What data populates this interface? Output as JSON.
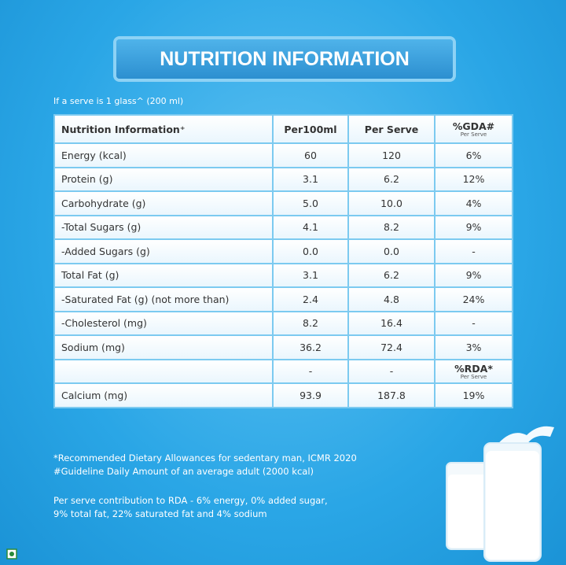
{
  "header": {
    "title": "NUTRITION INFORMATION",
    "serve_note": "If a serve is 1 glass^ (200 ml)"
  },
  "table": {
    "columns": [
      {
        "label": "Nutrition Information⁺"
      },
      {
        "label": "Per100ml"
      },
      {
        "label": "Per Serve"
      },
      {
        "label": "%GDA#",
        "sub": "Per Serve"
      }
    ],
    "rows": [
      {
        "label": "Energy (kcal)",
        "per100": "60",
        "per_serve": "120",
        "pct": "6%"
      },
      {
        "label": "Protein (g)",
        "per100": "3.1",
        "per_serve": "6.2",
        "pct": "12%"
      },
      {
        "label": "Carbohydrate (g)",
        "per100": "5.0",
        "per_serve": "10.0",
        "pct": "4%"
      },
      {
        "label": "-Total Sugars (g)",
        "per100": "4.1",
        "per_serve": "8.2",
        "pct": "9%"
      },
      {
        "label": "-Added Sugars (g)",
        "per100": "0.0",
        "per_serve": "0.0",
        "pct": "-"
      },
      {
        "label": "Total Fat (g)",
        "per100": "3.1",
        "per_serve": "6.2",
        "pct": "9%"
      },
      {
        "label": "-Saturated Fat (g) (not more than)",
        "per100": "2.4",
        "per_serve": "4.8",
        "pct": "24%"
      },
      {
        "label": "-Cholesterol (mg)",
        "per100": "8.2",
        "per_serve": "16.4",
        "pct": "-"
      },
      {
        "label": "Sodium (mg)",
        "per100": "36.2",
        "per_serve": "72.4",
        "pct": "3%"
      },
      {
        "per100": "-",
        "per_serve": "-",
        "pct": "%RDA*",
        "pct_sub": "Per Serve"
      },
      {
        "label": "Calcium (mg)",
        "per100": "93.9",
        "per_serve": "187.8",
        "pct": "19%"
      }
    ]
  },
  "footnotes": [
    "*Recommended Dietary Allowances for sedentary man, ICMR 2020",
    "#Guideline Daily Amount of an average adult (2000 kcal)"
  ],
  "contribution": [
    "Per serve contribution to RDA - 6% energy, 0% added sugar,",
    "9% total fat, 22% saturated fat and 4% sodium"
  ]
}
